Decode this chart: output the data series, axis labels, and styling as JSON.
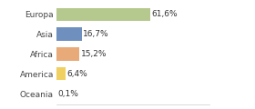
{
  "categories": [
    "Europa",
    "Asia",
    "Africa",
    "America",
    "Oceania"
  ],
  "values": [
    61.6,
    16.7,
    15.2,
    6.4,
    0.1
  ],
  "labels": [
    "61,6%",
    "16,7%",
    "15,2%",
    "6,4%",
    "0,1%"
  ],
  "bar_colors": [
    "#b5c98e",
    "#6f90bf",
    "#e8aa78",
    "#f0d060",
    "#f5c0a0"
  ],
  "background_color": "#ffffff",
  "xlim": [
    0,
    100
  ],
  "label_fontsize": 6.5,
  "tick_fontsize": 6.5
}
